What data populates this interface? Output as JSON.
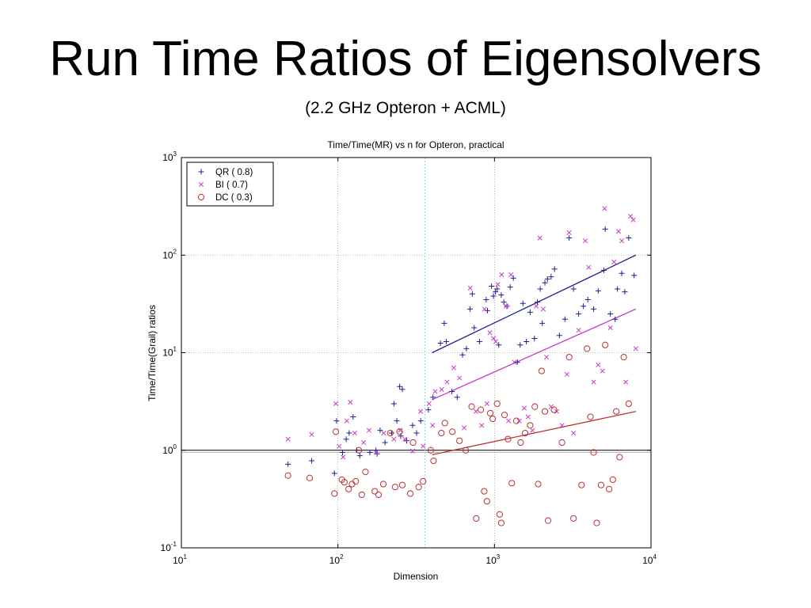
{
  "slide": {
    "title": "Run Time Ratios of Eigensolvers",
    "subtitle": "(2.2 GHz Opteron + ACML)"
  },
  "chart_data": {
    "type": "scatter",
    "title": "Time/Time(MR) vs n for Opteron, practical",
    "xlabel": "Dimension",
    "ylabel": "Time/Time(Grail) ratios",
    "x_scale": "log",
    "y_scale": "log",
    "xlim": [
      10,
      10000
    ],
    "ylim": [
      0.1,
      1000
    ],
    "x_ticks": [
      {
        "value": 10,
        "base": "10",
        "exp": "1"
      },
      {
        "value": 100,
        "base": "10",
        "exp": "2"
      },
      {
        "value": 1000,
        "base": "10",
        "exp": "3"
      },
      {
        "value": 10000,
        "base": "10",
        "exp": "4"
      }
    ],
    "y_ticks": [
      {
        "value": 0.1,
        "base": "10",
        "exp": "-1"
      },
      {
        "value": 1,
        "base": "10",
        "exp": "0"
      },
      {
        "value": 10,
        "base": "10",
        "exp": "1"
      },
      {
        "value": 100,
        "base": "10",
        "exp": "2"
      },
      {
        "value": 1000,
        "base": "10",
        "exp": "3"
      }
    ],
    "grid": true,
    "legend_position": "top-left",
    "reference_lines": [
      {
        "axis": "y",
        "value": 1,
        "color": "#000000"
      },
      {
        "axis": "x",
        "value": 360,
        "color": "#7fd8ee"
      }
    ],
    "series": [
      {
        "name": "QR",
        "legend_label": "QR  ( 0.8)",
        "marker": "plus",
        "color": "#1f1f8f",
        "fit": {
          "x": [
            400,
            8000
          ],
          "y": [
            10,
            100
          ]
        },
        "points": [
          [
            48,
            0.72
          ],
          [
            68,
            0.78
          ],
          [
            95,
            0.58
          ],
          [
            98,
            2.0
          ],
          [
            107,
            0.95
          ],
          [
            113,
            1.3
          ],
          [
            118,
            1.5
          ],
          [
            125,
            2.2
          ],
          [
            132,
            1.0
          ],
          [
            138,
            0.88
          ],
          [
            160,
            0.95
          ],
          [
            175,
            1.0
          ],
          [
            178,
            0.92
          ],
          [
            186,
            1.6
          ],
          [
            200,
            1.2
          ],
          [
            220,
            1.5
          ],
          [
            228,
            3.0
          ],
          [
            238,
            2.0
          ],
          [
            248,
            4.5
          ],
          [
            252,
            1.4
          ],
          [
            258,
            4.2
          ],
          [
            275,
            1.25
          ],
          [
            300,
            1.8
          ],
          [
            318,
            1.5
          ],
          [
            338,
            2.0
          ],
          [
            378,
            2.6
          ],
          [
            405,
            3.5
          ],
          [
            452,
            12.5
          ],
          [
            478,
            20
          ],
          [
            492,
            13
          ],
          [
            535,
            4.0
          ],
          [
            578,
            3.5
          ],
          [
            625,
            9.5
          ],
          [
            662,
            11
          ],
          [
            698,
            28
          ],
          [
            722,
            40
          ],
          [
            742,
            18
          ],
          [
            802,
            13
          ],
          [
            885,
            35
          ],
          [
            902,
            27
          ],
          [
            958,
            48
          ],
          [
            985,
            38
          ],
          [
            1015,
            42
          ],
          [
            1040,
            45
          ],
          [
            1065,
            12
          ],
          [
            1105,
            39
          ],
          [
            1148,
            33
          ],
          [
            1200,
            30
          ],
          [
            1260,
            47
          ],
          [
            1320,
            58
          ],
          [
            1400,
            8
          ],
          [
            1460,
            12
          ],
          [
            1520,
            32
          ],
          [
            1600,
            13
          ],
          [
            1690,
            26
          ],
          [
            1800,
            14
          ],
          [
            1880,
            33
          ],
          [
            1960,
            45
          ],
          [
            2020,
            20
          ],
          [
            2100,
            52
          ],
          [
            2180,
            57
          ],
          [
            2300,
            60
          ],
          [
            2420,
            72
          ],
          [
            2600,
            15
          ],
          [
            2820,
            22
          ],
          [
            3000,
            150
          ],
          [
            3200,
            45
          ],
          [
            3450,
            25
          ],
          [
            3700,
            30
          ],
          [
            3950,
            35
          ],
          [
            4300,
            28
          ],
          [
            4600,
            43
          ],
          [
            5000,
            70
          ],
          [
            5100,
            185
          ],
          [
            5500,
            25
          ],
          [
            5900,
            22
          ],
          [
            6100,
            45
          ],
          [
            6500,
            65
          ],
          [
            6800,
            42
          ],
          [
            7200,
            150
          ],
          [
            7800,
            62
          ]
        ]
      },
      {
        "name": "BI",
        "legend_label": "BI  ( 0.7)",
        "marker": "x",
        "color": "#c83cc8",
        "fit": {
          "x": [
            400,
            8000
          ],
          "y": [
            3.3,
            28
          ]
        },
        "points": [
          [
            48,
            1.3
          ],
          [
            68,
            1.45
          ],
          [
            97,
            3.0
          ],
          [
            102,
            1.1
          ],
          [
            108,
            0.85
          ],
          [
            114,
            2.0
          ],
          [
            120,
            3.1
          ],
          [
            128,
            1.5
          ],
          [
            146,
            1.2
          ],
          [
            158,
            1.6
          ],
          [
            175,
            0.95
          ],
          [
            196,
            1.5
          ],
          [
            228,
            1.3
          ],
          [
            250,
            1.6
          ],
          [
            268,
            1.3
          ],
          [
            300,
            0.98
          ],
          [
            338,
            2.5
          ],
          [
            350,
            1.1
          ],
          [
            382,
            3.0
          ],
          [
            402,
            1.8
          ],
          [
            418,
            4.0
          ],
          [
            460,
            4.2
          ],
          [
            498,
            5.0
          ],
          [
            550,
            7.0
          ],
          [
            598,
            5.5
          ],
          [
            640,
            1.7
          ],
          [
            700,
            46
          ],
          [
            762,
            2.5
          ],
          [
            828,
            1.8
          ],
          [
            864,
            28
          ],
          [
            895,
            3.0
          ],
          [
            935,
            16
          ],
          [
            985,
            14
          ],
          [
            1020,
            13
          ],
          [
            1050,
            50
          ],
          [
            1110,
            63
          ],
          [
            1190,
            30
          ],
          [
            1230,
            2.0
          ],
          [
            1275,
            63
          ],
          [
            1340,
            8
          ],
          [
            1440,
            2.0
          ],
          [
            1550,
            2.7
          ],
          [
            1640,
            2.2
          ],
          [
            1750,
            1.6
          ],
          [
            1850,
            30
          ],
          [
            1950,
            150
          ],
          [
            2050,
            28
          ],
          [
            2150,
            9
          ],
          [
            2300,
            2.8
          ],
          [
            2500,
            2.5
          ],
          [
            2700,
            1.8
          ],
          [
            2900,
            6
          ],
          [
            3000,
            170
          ],
          [
            3200,
            1.5
          ],
          [
            3450,
            17
          ],
          [
            3800,
            140
          ],
          [
            4000,
            75
          ],
          [
            4300,
            5.0
          ],
          [
            4600,
            7.5
          ],
          [
            4900,
            6.5
          ],
          [
            5050,
            300
          ],
          [
            5500,
            18
          ],
          [
            5800,
            85
          ],
          [
            6200,
            175
          ],
          [
            6500,
            140
          ],
          [
            6900,
            5
          ],
          [
            7400,
            250
          ],
          [
            7700,
            230
          ],
          [
            8000,
            11
          ]
        ]
      },
      {
        "name": "DC",
        "legend_label": "DC  ( 0.3)",
        "marker": "circle",
        "color": "#b83232",
        "fit": {
          "x": [
            400,
            8000
          ],
          "y": [
            0.9,
            2.5
          ]
        },
        "points": [
          [
            48,
            0.55
          ],
          [
            66,
            0.52
          ],
          [
            95,
            0.36
          ],
          [
            97,
            1.55
          ],
          [
            106,
            0.5
          ],
          [
            110,
            0.47
          ],
          [
            117,
            0.4
          ],
          [
            123,
            0.45
          ],
          [
            130,
            0.48
          ],
          [
            136,
            1.0
          ],
          [
            142,
            0.35
          ],
          [
            150,
            0.6
          ],
          [
            172,
            0.38
          ],
          [
            182,
            0.35
          ],
          [
            195,
            0.45
          ],
          [
            216,
            1.5
          ],
          [
            232,
            0.42
          ],
          [
            248,
            1.55
          ],
          [
            258,
            0.44
          ],
          [
            290,
            0.36
          ],
          [
            302,
            1.2
          ],
          [
            328,
            0.42
          ],
          [
            350,
            0.48
          ],
          [
            392,
            1.0
          ],
          [
            408,
            0.78
          ],
          [
            458,
            1.5
          ],
          [
            482,
            1.9
          ],
          [
            538,
            1.55
          ],
          [
            598,
            1.25
          ],
          [
            656,
            1.0
          ],
          [
            715,
            2.8
          ],
          [
            765,
            0.2
          ],
          [
            818,
            2.6
          ],
          [
            860,
            0.38
          ],
          [
            895,
            0.3
          ],
          [
            940,
            2.4
          ],
          [
            975,
            2.1
          ],
          [
            1040,
            3.0
          ],
          [
            1080,
            0.22
          ],
          [
            1105,
            0.18
          ],
          [
            1160,
            2.3
          ],
          [
            1220,
            1.3
          ],
          [
            1290,
            0.46
          ],
          [
            1380,
            2.0
          ],
          [
            1470,
            1.2
          ],
          [
            1570,
            1.5
          ],
          [
            1690,
            1.8
          ],
          [
            1810,
            2.8
          ],
          [
            1900,
            0.45
          ],
          [
            2000,
            6.5
          ],
          [
            2100,
            2.5
          ],
          [
            2200,
            0.19
          ],
          [
            2400,
            2.6
          ],
          [
            2700,
            1.2
          ],
          [
            3000,
            9
          ],
          [
            3200,
            0.2
          ],
          [
            3600,
            0.44
          ],
          [
            3900,
            11
          ],
          [
            4100,
            2.2
          ],
          [
            4300,
            0.95
          ],
          [
            4500,
            0.18
          ],
          [
            4800,
            0.44
          ],
          [
            5100,
            12
          ],
          [
            5400,
            0.4
          ],
          [
            5700,
            0.5
          ],
          [
            6000,
            2.5
          ],
          [
            6300,
            0.85
          ],
          [
            6700,
            9
          ],
          [
            7200,
            3.0
          ]
        ]
      }
    ]
  }
}
